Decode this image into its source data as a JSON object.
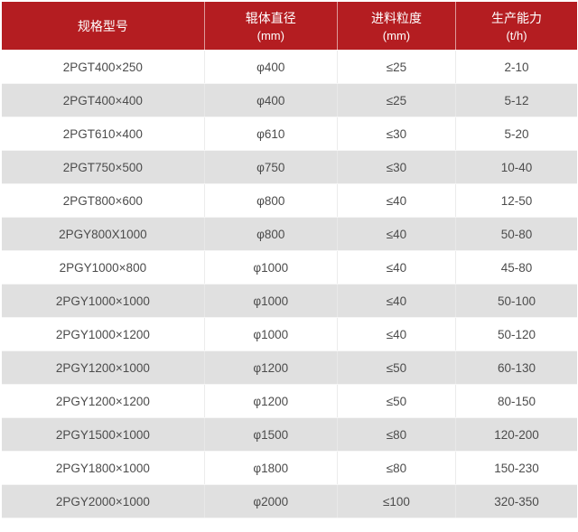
{
  "table": {
    "headers": [
      {
        "title": "规格型号",
        "unit": ""
      },
      {
        "title": "辊体直径",
        "unit": "(mm)"
      },
      {
        "title": "进料粒度",
        "unit": "(mm)"
      },
      {
        "title": "生产能力",
        "unit": "(t/h)"
      }
    ],
    "rows": [
      [
        "2PGT400×250",
        "φ400",
        "≤25",
        "2-10"
      ],
      [
        "2PGT400×400",
        "φ400",
        "≤25",
        "5-12"
      ],
      [
        "2PGT610×400",
        "φ610",
        "≤30",
        "5-20"
      ],
      [
        "2PGT750×500",
        "φ750",
        "≤30",
        "10-40"
      ],
      [
        "2PGT800×600",
        "φ800",
        "≤40",
        "12-50"
      ],
      [
        "2PGY800X1000",
        "φ800",
        "≤40",
        "50-80"
      ],
      [
        "2PGY1000×800",
        "φ1000",
        "≤40",
        "45-80"
      ],
      [
        "2PGY1000×1000",
        "φ1000",
        "≤40",
        "50-100"
      ],
      [
        "2PGY1000×1200",
        "φ1000",
        "≤40",
        "50-120"
      ],
      [
        "2PGY1200×1000",
        "φ1200",
        "≤50",
        "60-130"
      ],
      [
        "2PGY1200×1200",
        "φ1200",
        "≤50",
        "80-150"
      ],
      [
        "2PGY1500×1000",
        "φ1500",
        "≤80",
        "120-200"
      ],
      [
        "2PGY1800×1000",
        "φ1800",
        "≤80",
        "150-230"
      ],
      [
        "2PGY2000×1000",
        "φ2000",
        "≤100",
        "320-350"
      ]
    ]
  },
  "colors": {
    "header_bg": "#b41d21",
    "header_text": "#ffffff",
    "row_bg": "#ffffff",
    "row_alt_bg": "#e0e0e0",
    "body_text": "#4c4c4c"
  },
  "chart_data": {
    "type": "table",
    "columns": [
      "规格型号",
      "辊体直径 (mm)",
      "进料粒度 (mm)",
      "生产能力 (t/h)"
    ],
    "rows": [
      [
        "2PGT400×250",
        "φ400",
        "≤25",
        "2-10"
      ],
      [
        "2PGT400×400",
        "φ400",
        "≤25",
        "5-12"
      ],
      [
        "2PGT610×400",
        "φ610",
        "≤30",
        "5-20"
      ],
      [
        "2PGT750×500",
        "φ750",
        "≤30",
        "10-40"
      ],
      [
        "2PGT800×600",
        "φ800",
        "≤40",
        "12-50"
      ],
      [
        "2PGY800X1000",
        "φ800",
        "≤40",
        "50-80"
      ],
      [
        "2PGY1000×800",
        "φ1000",
        "≤40",
        "45-80"
      ],
      [
        "2PGY1000×1000",
        "φ1000",
        "≤40",
        "50-100"
      ],
      [
        "2PGY1000×1200",
        "φ1000",
        "≤40",
        "50-120"
      ],
      [
        "2PGY1200×1000",
        "φ1200",
        "≤50",
        "60-130"
      ],
      [
        "2PGY1200×1200",
        "φ1200",
        "≤50",
        "80-150"
      ],
      [
        "2PGY1500×1000",
        "φ1500",
        "≤80",
        "120-200"
      ],
      [
        "2PGY1800×1000",
        "φ1800",
        "≤80",
        "150-230"
      ],
      [
        "2PGY2000×1000",
        "φ2000",
        "≤100",
        "320-350"
      ]
    ]
  }
}
